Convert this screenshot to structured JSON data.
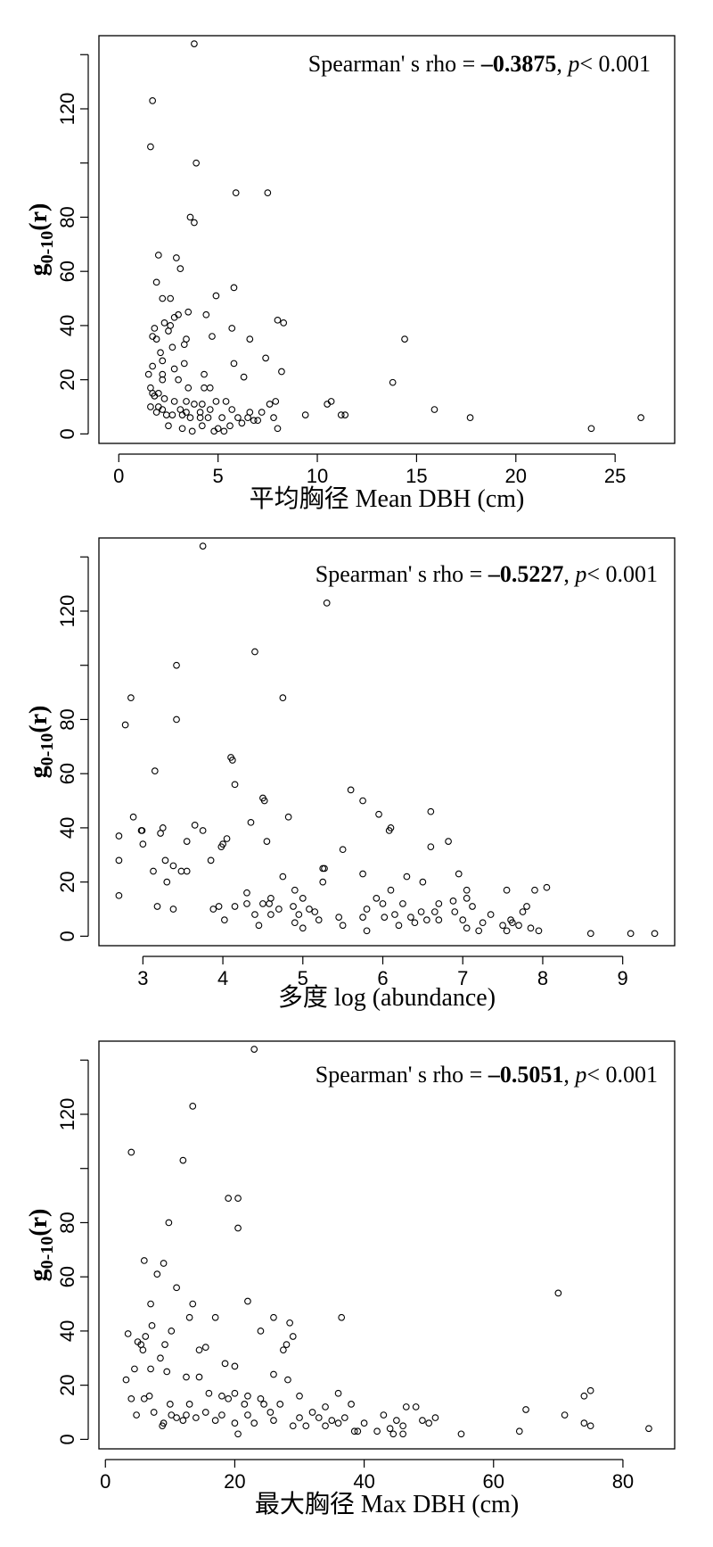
{
  "chart_data": [
    {
      "type": "scatter",
      "xlabel": "平均胸径  Mean DBH (cm)",
      "ylabel": "g",
      "ylabel_sub": "0-10",
      "ylabel_suffix": "(r)",
      "annotation": {
        "prefix": "Spearman' s rho = ",
        "rho": "–0.3875",
        "sep": ", ",
        "p": "p",
        "suffix": "< 0.001"
      },
      "xlim": [
        -1,
        28
      ],
      "ylim": [
        -3.5,
        147
      ],
      "xticks": [
        0,
        5,
        10,
        15,
        20,
        25
      ],
      "yticks": [
        0,
        20,
        40,
        60,
        80,
        120
      ],
      "points": [
        [
          3.8,
          144
        ],
        [
          1.7,
          123
        ],
        [
          1.6,
          106
        ],
        [
          3.9,
          100
        ],
        [
          5.9,
          89
        ],
        [
          7.5,
          89
        ],
        [
          3.6,
          80
        ],
        [
          3.8,
          78
        ],
        [
          2.0,
          66
        ],
        [
          2.9,
          65
        ],
        [
          3.1,
          61
        ],
        [
          1.9,
          56
        ],
        [
          5.8,
          54
        ],
        [
          4.9,
          51
        ],
        [
          2.6,
          50
        ],
        [
          2.2,
          50
        ],
        [
          4.4,
          44
        ],
        [
          3.5,
          45
        ],
        [
          3.0,
          44
        ],
        [
          2.8,
          43
        ],
        [
          8.0,
          42
        ],
        [
          8.3,
          41
        ],
        [
          2.3,
          41
        ],
        [
          2.6,
          40
        ],
        [
          2.5,
          38
        ],
        [
          5.7,
          39
        ],
        [
          1.8,
          39
        ],
        [
          1.7,
          36
        ],
        [
          1.9,
          35
        ],
        [
          3.4,
          35
        ],
        [
          4.7,
          36
        ],
        [
          3.3,
          33
        ],
        [
          6.6,
          35
        ],
        [
          2.7,
          32
        ],
        [
          2.1,
          30
        ],
        [
          2.2,
          27
        ],
        [
          3.3,
          26
        ],
        [
          7.4,
          28
        ],
        [
          5.8,
          26
        ],
        [
          1.7,
          25
        ],
        [
          2.8,
          24
        ],
        [
          1.5,
          22
        ],
        [
          2.2,
          22
        ],
        [
          8.2,
          23
        ],
        [
          4.3,
          22
        ],
        [
          6.3,
          21
        ],
        [
          2.2,
          20
        ],
        [
          3.0,
          20
        ],
        [
          1.6,
          17
        ],
        [
          3.5,
          17
        ],
        [
          4.3,
          17
        ],
        [
          4.6,
          17
        ],
        [
          1.7,
          15
        ],
        [
          2.0,
          15
        ],
        [
          1.8,
          14
        ],
        [
          2.3,
          13
        ],
        [
          2.8,
          12
        ],
        [
          3.4,
          12
        ],
        [
          4.9,
          12
        ],
        [
          3.8,
          11
        ],
        [
          4.2,
          11
        ],
        [
          5.4,
          12
        ],
        [
          7.6,
          11
        ],
        [
          7.9,
          12
        ],
        [
          1.6,
          10
        ],
        [
          2.0,
          10
        ],
        [
          2.2,
          9
        ],
        [
          3.1,
          9
        ],
        [
          3.4,
          8
        ],
        [
          4.1,
          8
        ],
        [
          4.6,
          9
        ],
        [
          5.7,
          9
        ],
        [
          6.6,
          8
        ],
        [
          7.2,
          8
        ],
        [
          1.9,
          8
        ],
        [
          2.4,
          7
        ],
        [
          2.7,
          7
        ],
        [
          3.2,
          7
        ],
        [
          3.6,
          6
        ],
        [
          4.1,
          6
        ],
        [
          4.5,
          6
        ],
        [
          5.2,
          6
        ],
        [
          6.0,
          6
        ],
        [
          7.8,
          6
        ],
        [
          9.4,
          7
        ],
        [
          10.5,
          11
        ],
        [
          10.7,
          12
        ],
        [
          11.2,
          7
        ],
        [
          11.4,
          7
        ],
        [
          14.4,
          35
        ],
        [
          13.8,
          19
        ],
        [
          15.9,
          9
        ],
        [
          17.7,
          6
        ],
        [
          23.8,
          2
        ],
        [
          26.3,
          6
        ],
        [
          2.5,
          3
        ],
        [
          3.2,
          2
        ],
        [
          4.2,
          3
        ],
        [
          5.0,
          2
        ],
        [
          5.6,
          3
        ],
        [
          6.2,
          4
        ],
        [
          6.8,
          5
        ],
        [
          7.0,
          5
        ],
        [
          8.0,
          2
        ],
        [
          3.7,
          1
        ],
        [
          4.8,
          1
        ],
        [
          5.3,
          1
        ],
        [
          6.5,
          6
        ]
      ]
    },
    {
      "type": "scatter",
      "xlabel": "多度  log (abundance)",
      "ylabel": "g",
      "ylabel_sub": "0-10",
      "ylabel_suffix": "(r)",
      "annotation": {
        "prefix": "Spearman' s rho = ",
        "rho": "–0.5227",
        "sep": ", ",
        "p": "p",
        "suffix": "< 0.001"
      },
      "xlim": [
        2.45,
        9.65
      ],
      "ylim": [
        -3.5,
        147
      ],
      "xticks": [
        3,
        4,
        5,
        6,
        7,
        8,
        9
      ],
      "yticks": [
        0,
        20,
        40,
        60,
        80,
        120
      ],
      "points": [
        [
          3.75,
          144
        ],
        [
          5.3,
          123
        ],
        [
          4.4,
          105
        ],
        [
          3.42,
          100
        ],
        [
          2.85,
          88
        ],
        [
          2.78,
          78
        ],
        [
          4.75,
          88
        ],
        [
          3.42,
          80
        ],
        [
          4.1,
          66
        ],
        [
          4.12,
          65
        ],
        [
          3.15,
          61
        ],
        [
          4.15,
          56
        ],
        [
          5.6,
          54
        ],
        [
          5.75,
          50
        ],
        [
          4.5,
          51
        ],
        [
          4.52,
          50
        ],
        [
          6.6,
          46
        ],
        [
          5.95,
          45
        ],
        [
          4.82,
          44
        ],
        [
          2.88,
          44
        ],
        [
          4.35,
          42
        ],
        [
          3.25,
          40
        ],
        [
          3.65,
          41
        ],
        [
          2.98,
          39
        ],
        [
          2.99,
          39
        ],
        [
          3.75,
          39
        ],
        [
          6.1,
          40
        ],
        [
          6.08,
          39
        ],
        [
          2.7,
          37
        ],
        [
          3.0,
          34
        ],
        [
          3.22,
          38
        ],
        [
          3.55,
          35
        ],
        [
          4.05,
          36
        ],
        [
          4.0,
          34
        ],
        [
          4.55,
          35
        ],
        [
          3.98,
          33
        ],
        [
          6.82,
          35
        ],
        [
          6.6,
          33
        ],
        [
          5.5,
          32
        ],
        [
          3.28,
          28
        ],
        [
          3.38,
          26
        ],
        [
          3.48,
          24
        ],
        [
          3.13,
          24
        ],
        [
          2.7,
          28
        ],
        [
          3.85,
          28
        ],
        [
          3.55,
          24
        ],
        [
          5.25,
          25
        ],
        [
          5.27,
          25
        ],
        [
          5.75,
          23
        ],
        [
          4.75,
          22
        ],
        [
          6.3,
          22
        ],
        [
          6.95,
          23
        ],
        [
          5.25,
          20
        ],
        [
          6.5,
          20
        ],
        [
          3.3,
          20
        ],
        [
          4.9,
          17
        ],
        [
          5.0,
          14
        ],
        [
          4.6,
          14
        ],
        [
          4.3,
          16
        ],
        [
          2.7,
          15
        ],
        [
          3.18,
          11
        ],
        [
          3.38,
          10
        ],
        [
          3.95,
          11
        ],
        [
          4.15,
          11
        ],
        [
          4.3,
          12
        ],
        [
          4.5,
          12
        ],
        [
          4.58,
          12
        ],
        [
          4.88,
          11
        ],
        [
          5.08,
          10
        ],
        [
          5.8,
          10
        ],
        [
          5.92,
          14
        ],
        [
          6.0,
          12
        ],
        [
          6.1,
          17
        ],
        [
          6.25,
          12
        ],
        [
          6.7,
          12
        ],
        [
          6.88,
          13
        ],
        [
          7.05,
          14
        ],
        [
          7.05,
          17
        ],
        [
          7.12,
          11
        ],
        [
          7.25,
          5
        ],
        [
          7.35,
          8
        ],
        [
          7.55,
          17
        ],
        [
          7.6,
          6
        ],
        [
          7.75,
          9
        ],
        [
          7.8,
          11
        ],
        [
          7.9,
          17
        ],
        [
          8.05,
          18
        ],
        [
          3.88,
          10
        ],
        [
          4.02,
          6
        ],
        [
          4.6,
          8
        ],
        [
          4.7,
          10
        ],
        [
          4.95,
          8
        ],
        [
          5.15,
          9
        ],
        [
          5.2,
          6
        ],
        [
          5.45,
          7
        ],
        [
          5.75,
          7
        ],
        [
          6.02,
          7
        ],
        [
          6.15,
          8
        ],
        [
          6.35,
          7
        ],
        [
          6.48,
          9
        ],
        [
          6.55,
          6
        ],
        [
          6.65,
          9
        ],
        [
          6.7,
          6
        ],
        [
          6.9,
          9
        ],
        [
          7.05,
          3
        ],
        [
          7.2,
          2
        ],
        [
          7.5,
          4
        ],
        [
          7.55,
          2
        ],
        [
          7.62,
          5
        ],
        [
          7.7,
          4
        ],
        [
          7.85,
          3
        ],
        [
          7.95,
          2
        ],
        [
          4.4,
          8
        ],
        [
          4.45,
          4
        ],
        [
          4.9,
          5
        ],
        [
          5.0,
          3
        ],
        [
          5.5,
          4
        ],
        [
          5.8,
          2
        ],
        [
          6.2,
          4
        ],
        [
          6.4,
          5
        ],
        [
          7.0,
          6
        ],
        [
          8.6,
          1
        ],
        [
          9.1,
          1
        ],
        [
          9.4,
          1
        ]
      ]
    },
    {
      "type": "scatter",
      "xlabel": "最大胸径 Max DBH (cm)",
      "ylabel": "g",
      "ylabel_sub": "0-10",
      "ylabel_suffix": "(r)",
      "annotation": {
        "prefix": "Spearman' s rho = ",
        "rho": "–0.5051",
        "sep": ", ",
        "p": "p",
        "suffix": "< 0.001"
      },
      "xlim": [
        -1,
        88
      ],
      "ylim": [
        -3.5,
        147
      ],
      "xticks": [
        0,
        20,
        40,
        60,
        80
      ],
      "yticks": [
        0,
        20,
        40,
        60,
        80,
        120
      ],
      "points": [
        [
          23,
          144
        ],
        [
          13.5,
          123
        ],
        [
          4,
          106
        ],
        [
          12,
          103
        ],
        [
          9.8,
          80
        ],
        [
          19,
          89
        ],
        [
          20.5,
          89
        ],
        [
          20.5,
          78
        ],
        [
          6,
          66
        ],
        [
          9,
          65
        ],
        [
          8,
          61
        ],
        [
          11,
          56
        ],
        [
          70,
          54
        ],
        [
          22,
          51
        ],
        [
          13.5,
          50
        ],
        [
          7,
          50
        ],
        [
          17,
          45
        ],
        [
          26,
          45
        ],
        [
          36.5,
          45
        ],
        [
          13,
          45
        ],
        [
          28.5,
          43
        ],
        [
          24,
          40
        ],
        [
          7.2,
          42
        ],
        [
          10.2,
          40
        ],
        [
          3.5,
          39
        ],
        [
          6.2,
          38
        ],
        [
          29,
          38
        ],
        [
          5,
          36
        ],
        [
          5.5,
          35
        ],
        [
          9.2,
          35
        ],
        [
          5.8,
          33
        ],
        [
          15.5,
          34
        ],
        [
          14.5,
          33
        ],
        [
          28,
          35
        ],
        [
          27.5,
          33
        ],
        [
          8.5,
          30
        ],
        [
          18.5,
          28
        ],
        [
          20,
          27
        ],
        [
          7,
          26
        ],
        [
          4.5,
          26
        ],
        [
          9.5,
          25
        ],
        [
          3.2,
          22
        ],
        [
          12.5,
          23
        ],
        [
          14.5,
          23
        ],
        [
          26,
          24
        ],
        [
          28.2,
          22
        ],
        [
          75,
          18
        ],
        [
          74,
          16
        ],
        [
          16,
          17
        ],
        [
          20,
          17
        ],
        [
          22,
          16
        ],
        [
          24,
          15
        ],
        [
          30,
          16
        ],
        [
          36,
          17
        ],
        [
          18,
          16
        ],
        [
          4,
          15
        ],
        [
          6,
          15
        ],
        [
          6.8,
          16
        ],
        [
          10,
          13
        ],
        [
          13,
          13
        ],
        [
          19,
          15
        ],
        [
          21.5,
          13
        ],
        [
          24.5,
          13
        ],
        [
          27,
          13
        ],
        [
          34,
          12
        ],
        [
          38,
          13
        ],
        [
          46.5,
          12
        ],
        [
          48,
          12
        ],
        [
          65,
          11
        ],
        [
          71,
          9
        ],
        [
          4.8,
          9
        ],
        [
          7.5,
          10
        ],
        [
          10.2,
          9
        ],
        [
          11,
          8
        ],
        [
          12.5,
          9
        ],
        [
          15.5,
          10
        ],
        [
          18,
          9
        ],
        [
          22,
          9
        ],
        [
          25.5,
          10
        ],
        [
          30,
          8
        ],
        [
          32,
          10
        ],
        [
          33,
          8
        ],
        [
          35,
          7
        ],
        [
          37,
          8
        ],
        [
          40,
          6
        ],
        [
          43,
          9
        ],
        [
          45,
          7
        ],
        [
          49,
          7
        ],
        [
          51,
          8
        ],
        [
          9,
          6
        ],
        [
          12,
          7
        ],
        [
          14,
          8
        ],
        [
          17,
          7
        ],
        [
          20,
          6
        ],
        [
          23,
          6
        ],
        [
          26,
          7
        ],
        [
          29,
          5
        ],
        [
          31,
          5
        ],
        [
          34,
          5
        ],
        [
          36,
          6
        ],
        [
          39,
          3
        ],
        [
          42,
          3
        ],
        [
          44,
          4
        ],
        [
          46,
          5
        ],
        [
          50,
          6
        ],
        [
          55,
          2
        ],
        [
          64,
          3
        ],
        [
          74,
          6
        ],
        [
          75,
          5
        ],
        [
          84,
          4
        ],
        [
          20.5,
          2
        ],
        [
          8.8,
          5
        ],
        [
          38.5,
          3
        ],
        [
          46,
          2
        ],
        [
          44.5,
          2
        ]
      ]
    }
  ]
}
